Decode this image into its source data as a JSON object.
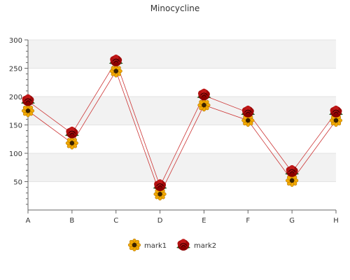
{
  "chart_data": {
    "type": "line",
    "title": "Minocycline",
    "categories": [
      "A",
      "B",
      "C",
      "D",
      "E",
      "F",
      "G",
      "H"
    ],
    "ylim": [
      0,
      300
    ],
    "yticks": [
      50,
      100,
      150,
      200,
      250,
      300
    ],
    "grid": true,
    "legend_position": "bottom",
    "series": [
      {
        "name": "mark1",
        "values": [
          175,
          118,
          245,
          28,
          185,
          158,
          52,
          158
        ],
        "marker": "sunflower-icon"
      },
      {
        "name": "mark2",
        "values": [
          192,
          135,
          262,
          42,
          202,
          172,
          67,
          172
        ],
        "marker": "rose-icon"
      }
    ],
    "colors": {
      "band": "#f2f2f2",
      "axis": "#666666",
      "line": "#cc3333"
    }
  }
}
